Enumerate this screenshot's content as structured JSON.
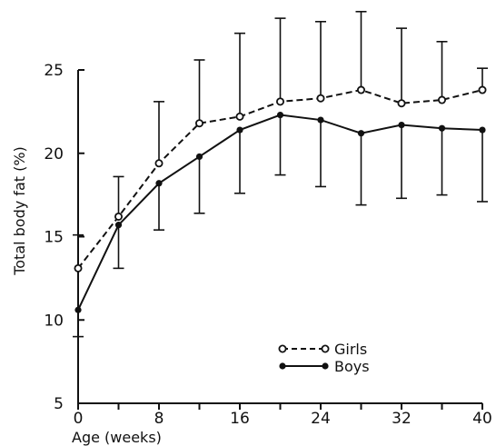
{
  "chart_data": {
    "type": "line",
    "title": "",
    "xlabel": "Age (weeks)",
    "ylabel": "Total body fat (%)",
    "xlim": [
      0,
      40
    ],
    "ylim": [
      5,
      25
    ],
    "x_ticks": [
      "0",
      "8",
      "16",
      "24",
      "32",
      "40"
    ],
    "x_tick_values": [
      0,
      8,
      16,
      24,
      32,
      40
    ],
    "y_ticks": [
      "5",
      "10",
      "15",
      "20",
      "25"
    ],
    "y_tick_values": [
      5,
      10,
      15,
      20,
      25
    ],
    "grid": false,
    "legend_position": "lower-right",
    "series": [
      {
        "name": "Girls",
        "style": "dashed",
        "marker": "open-circle",
        "x": [
          0,
          4,
          8,
          12,
          16,
          20,
          24,
          28,
          32,
          36,
          40
        ],
        "y": [
          13.1,
          16.2,
          19.4,
          21.8,
          22.2,
          23.1,
          23.3,
          23.8,
          23.0,
          23.2,
          23.8
        ],
        "error_upper": [
          15.1,
          18.6,
          23.1,
          25.6,
          27.2,
          28.1,
          27.9,
          28.5,
          27.5,
          26.7,
          25.1
        ],
        "error_lower": [
          13.1,
          16.2,
          19.4,
          21.8,
          22.2,
          23.1,
          23.3,
          23.8,
          23.0,
          23.2,
          23.8
        ]
      },
      {
        "name": "Boys",
        "style": "solid",
        "marker": "filled-circle",
        "x": [
          0,
          4,
          8,
          12,
          16,
          20,
          24,
          28,
          32,
          36,
          40
        ],
        "y": [
          10.6,
          15.7,
          18.2,
          19.8,
          21.4,
          22.3,
          22.0,
          21.2,
          21.7,
          21.5,
          21.4
        ],
        "error_upper": [
          10.6,
          15.7,
          18.2,
          19.8,
          21.4,
          22.3,
          22.0,
          21.2,
          21.7,
          21.5,
          21.4
        ],
        "error_lower": [
          9.0,
          13.1,
          15.4,
          16.4,
          17.6,
          18.7,
          18.0,
          16.9,
          17.3,
          17.5,
          17.1
        ]
      }
    ]
  }
}
